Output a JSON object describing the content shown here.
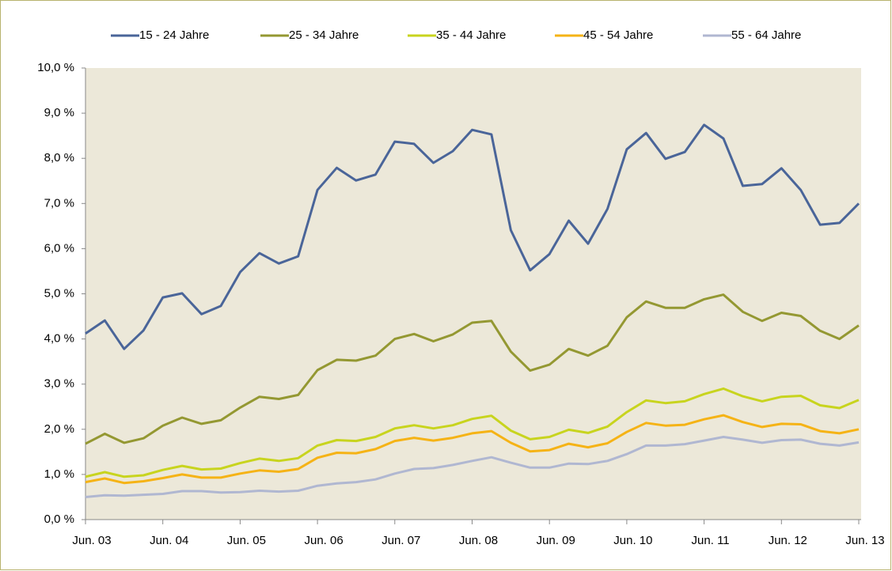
{
  "chart_data": {
    "type": "line",
    "categories": [
      "Jun. 03",
      null,
      null,
      null,
      "Jun. 04",
      null,
      null,
      null,
      "Jun. 05",
      null,
      null,
      null,
      "Jun. 06",
      null,
      null,
      null,
      "Jun. 07",
      null,
      null,
      null,
      "Jun. 08",
      null,
      null,
      null,
      "Jun. 09",
      null,
      null,
      null,
      "Jun. 10",
      null,
      null,
      null,
      "Jun. 11",
      null,
      null,
      null,
      "Jun. 12",
      null,
      null,
      null,
      "Jun. 13"
    ],
    "series": [
      {
        "name": "15 - 24 Jahre",
        "color": "#4a6599",
        "values": [
          4.12,
          4.41,
          3.78,
          4.19,
          4.92,
          5.01,
          4.55,
          4.73,
          5.48,
          5.9,
          5.67,
          5.83,
          7.3,
          7.79,
          7.51,
          7.64,
          8.37,
          8.32,
          7.9,
          8.16,
          8.63,
          8.53,
          6.41,
          5.52,
          5.88,
          6.62,
          6.11,
          6.88,
          8.2,
          8.56,
          7.99,
          8.14,
          8.74,
          8.44,
          7.39,
          7.43,
          7.78,
          7.3,
          6.53,
          6.57,
          7.0
        ]
      },
      {
        "name": "25 - 34 Jahre",
        "color": "#949832",
        "values": [
          1.68,
          1.9,
          1.7,
          1.8,
          2.08,
          2.26,
          2.12,
          2.2,
          2.48,
          2.72,
          2.67,
          2.76,
          3.31,
          3.54,
          3.52,
          3.63,
          4.0,
          4.11,
          3.95,
          4.1,
          4.36,
          4.4,
          3.72,
          3.3,
          3.43,
          3.78,
          3.63,
          3.85,
          4.48,
          4.83,
          4.69,
          4.69,
          4.88,
          4.98,
          4.6,
          4.4,
          4.58,
          4.51,
          4.18,
          4.0,
          4.3
        ]
      },
      {
        "name": "35 - 44 Jahre",
        "color": "#c8d41e",
        "values": [
          0.95,
          1.05,
          0.95,
          0.98,
          1.1,
          1.19,
          1.11,
          1.13,
          1.25,
          1.35,
          1.3,
          1.36,
          1.64,
          1.76,
          1.74,
          1.83,
          2.02,
          2.09,
          2.02,
          2.09,
          2.23,
          2.3,
          1.97,
          1.78,
          1.83,
          1.99,
          1.92,
          2.06,
          2.38,
          2.64,
          2.58,
          2.62,
          2.78,
          2.9,
          2.73,
          2.62,
          2.72,
          2.74,
          2.53,
          2.47,
          2.65
        ]
      },
      {
        "name": "45 - 54 Jahre",
        "color": "#f5b316",
        "values": [
          0.83,
          0.91,
          0.81,
          0.85,
          0.92,
          1.0,
          0.93,
          0.93,
          1.02,
          1.09,
          1.06,
          1.12,
          1.37,
          1.48,
          1.47,
          1.56,
          1.74,
          1.81,
          1.75,
          1.81,
          1.91,
          1.96,
          1.7,
          1.51,
          1.54,
          1.68,
          1.6,
          1.69,
          1.94,
          2.14,
          2.08,
          2.1,
          2.22,
          2.31,
          2.16,
          2.05,
          2.12,
          2.11,
          1.96,
          1.91,
          2.0
        ]
      },
      {
        "name": "55 - 64 Jahre",
        "color": "#b0b7d1",
        "values": [
          0.5,
          0.54,
          0.53,
          0.55,
          0.57,
          0.63,
          0.63,
          0.6,
          0.61,
          0.64,
          0.62,
          0.64,
          0.75,
          0.8,
          0.83,
          0.89,
          1.02,
          1.12,
          1.14,
          1.21,
          1.3,
          1.38,
          1.26,
          1.15,
          1.15,
          1.24,
          1.23,
          1.3,
          1.45,
          1.64,
          1.64,
          1.67,
          1.75,
          1.83,
          1.77,
          1.7,
          1.76,
          1.77,
          1.68,
          1.64,
          1.71
        ]
      }
    ],
    "ylim": [
      0,
      10
    ],
    "yticks": [
      {
        "value": 0,
        "label": "0,0 %"
      },
      {
        "value": 1,
        "label": "1,0 %"
      },
      {
        "value": 2,
        "label": "2,0 %"
      },
      {
        "value": 3,
        "label": "3,0 %"
      },
      {
        "value": 4,
        "label": "4,0 %"
      },
      {
        "value": 5,
        "label": "5,0 %"
      },
      {
        "value": 6,
        "label": "6,0 %"
      },
      {
        "value": 7,
        "label": "7,0 %"
      },
      {
        "value": 8,
        "label": "8,0 %"
      },
      {
        "value": 9,
        "label": "9,0 %"
      },
      {
        "value": 10,
        "label": "10,0 %"
      }
    ],
    "legend": "top",
    "grid": false
  }
}
